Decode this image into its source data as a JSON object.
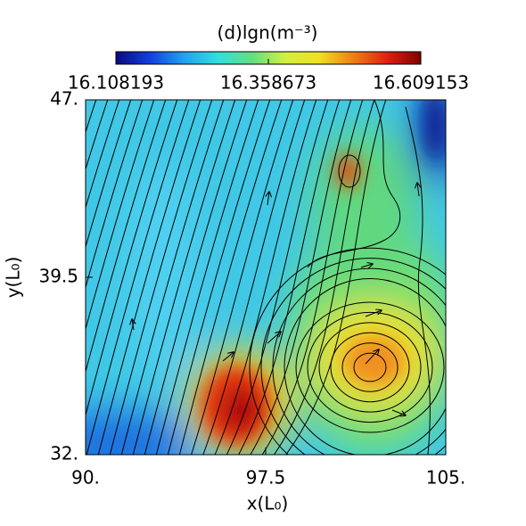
{
  "chart_data": {
    "type": "heatmap",
    "title": "(d)lgn(m⁻³)",
    "x_label": "x(L₀)",
    "y_label": "y(L₀)",
    "xlim": [
      90,
      105
    ],
    "xticks": [
      {
        "value": 90,
        "label": "90."
      },
      97.5,
      {
        "value": 105,
        "label": "105."
      }
    ],
    "ylim": [
      32,
      47
    ],
    "yticks": [
      {
        "value": 32,
        "label": "32."
      },
      39.5,
      {
        "value": 47,
        "label": "47."
      }
    ],
    "colorbar": {
      "lim": [
        16.108193,
        16.609153
      ],
      "ticks": [
        16.108193,
        16.358673,
        16.609153
      ],
      "colormap": [
        "#0a0a80",
        "#1040e0",
        "#20a0f0",
        "#30e0e0",
        "#60e080",
        "#d0f040",
        "#f0e020",
        "#f08010",
        "#e02010",
        "#800000"
      ]
    }
  }
}
